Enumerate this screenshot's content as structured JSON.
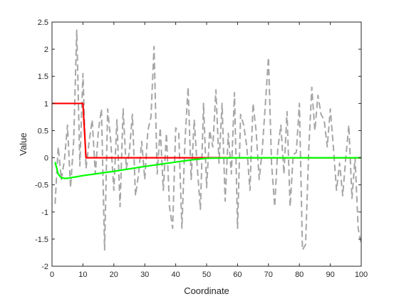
{
  "chart_data": {
    "type": "line",
    "title": "",
    "xlabel": "Coordinate",
    "ylabel": "Value",
    "xlim": [
      0,
      100
    ],
    "ylim": [
      -2,
      2.5
    ],
    "xticks": [
      0,
      10,
      20,
      30,
      40,
      50,
      60,
      70,
      80,
      90,
      100
    ],
    "yticks": [
      -2,
      -1.5,
      -1,
      -0.5,
      0,
      0.5,
      1,
      1.5,
      2,
      2.5
    ],
    "xtick_labels": [
      "0",
      "10",
      "20",
      "30",
      "40",
      "50",
      "60",
      "70",
      "80",
      "90",
      "100"
    ],
    "ytick_labels": [
      "-2",
      "-1.5",
      "-1",
      "-0.5",
      "0",
      "0.5",
      "1",
      "1.5",
      "2",
      "2.5"
    ],
    "grid": false,
    "box": true,
    "legend": "none",
    "series": [
      {
        "style": "dashed",
        "color": "#a6a6a6",
        "x": [
          1,
          2,
          3,
          4,
          5,
          6,
          7,
          8,
          9,
          10,
          11,
          12,
          13,
          14,
          15,
          16,
          17,
          18,
          19,
          20,
          21,
          22,
          23,
          24,
          25,
          26,
          27,
          28,
          29,
          30,
          31,
          32,
          33,
          34,
          35,
          36,
          37,
          38,
          39,
          40,
          41,
          42,
          43,
          44,
          45,
          46,
          47,
          48,
          49,
          50,
          51,
          52,
          53,
          54,
          55,
          56,
          57,
          58,
          59,
          60,
          61,
          62,
          63,
          64,
          65,
          66,
          67,
          68,
          69,
          70,
          71,
          72,
          73,
          74,
          75,
          76,
          77,
          78,
          79,
          80,
          81,
          82,
          83,
          84,
          85,
          86,
          87,
          88,
          89,
          90,
          91,
          92,
          93,
          94,
          95,
          96,
          97,
          98,
          99,
          100
        ],
        "y": [
          -0.85,
          0.2,
          -0.4,
          -0.05,
          0.6,
          -0.55,
          0.3,
          2.35,
          -0.15,
          1.55,
          -0.2,
          0.3,
          0.7,
          -0.3,
          0.5,
          0.9,
          -1.7,
          0.9,
          0.3,
          -0.6,
          0.7,
          -0.9,
          0.9,
          -0.2,
          0.1,
          0.8,
          -0.7,
          -0.3,
          0.3,
          -0.4,
          0.5,
          0.75,
          2.05,
          -0.3,
          0.55,
          -0.6,
          0.45,
          -0.9,
          -1.3,
          0.55,
          0.45,
          -1.3,
          0.3,
          1.3,
          -0.4,
          0.7,
          -0.2,
          -0.95,
          1.0,
          -0.55,
          0.5,
          0.2,
          1.25,
          -0.1,
          1.0,
          -0.8,
          0.45,
          -0.3,
          1.2,
          -1.3,
          0.8,
          0.6,
          0.2,
          -0.6,
          1.0,
          0.5,
          -0.4,
          0.15,
          1.0,
          1.85,
          -0.1,
          -0.9,
          0.15,
          0.6,
          -0.3,
          0.85,
          -0.9,
          0.05,
          0.1,
          1.0,
          -1.7,
          -1.6,
          0.1,
          1.3,
          0.5,
          1.15,
          0.8,
          0.7,
          0.2,
          0.9,
          0.2,
          -0.6,
          -0.1,
          -0.7,
          0.0,
          0.6,
          -0.75,
          0.0,
          -1.3,
          -1.6
        ]
      },
      {
        "style": "solid",
        "color": "#ff0000",
        "x": [
          0,
          10,
          11,
          50,
          100
        ],
        "y": [
          1,
          1,
          0,
          0,
          0
        ]
      },
      {
        "style": "solid",
        "color": "#00ff00",
        "x": [
          1,
          2,
          3,
          4,
          5,
          10,
          20,
          30,
          40,
          45,
          50,
          60,
          70,
          80,
          90,
          100
        ],
        "y": [
          -0.08,
          -0.3,
          -0.37,
          -0.38,
          -0.38,
          -0.33,
          -0.25,
          -0.16,
          -0.08,
          -0.04,
          -0.01,
          0.0,
          0.0,
          0.0,
          0.0,
          0.0
        ]
      }
    ]
  }
}
